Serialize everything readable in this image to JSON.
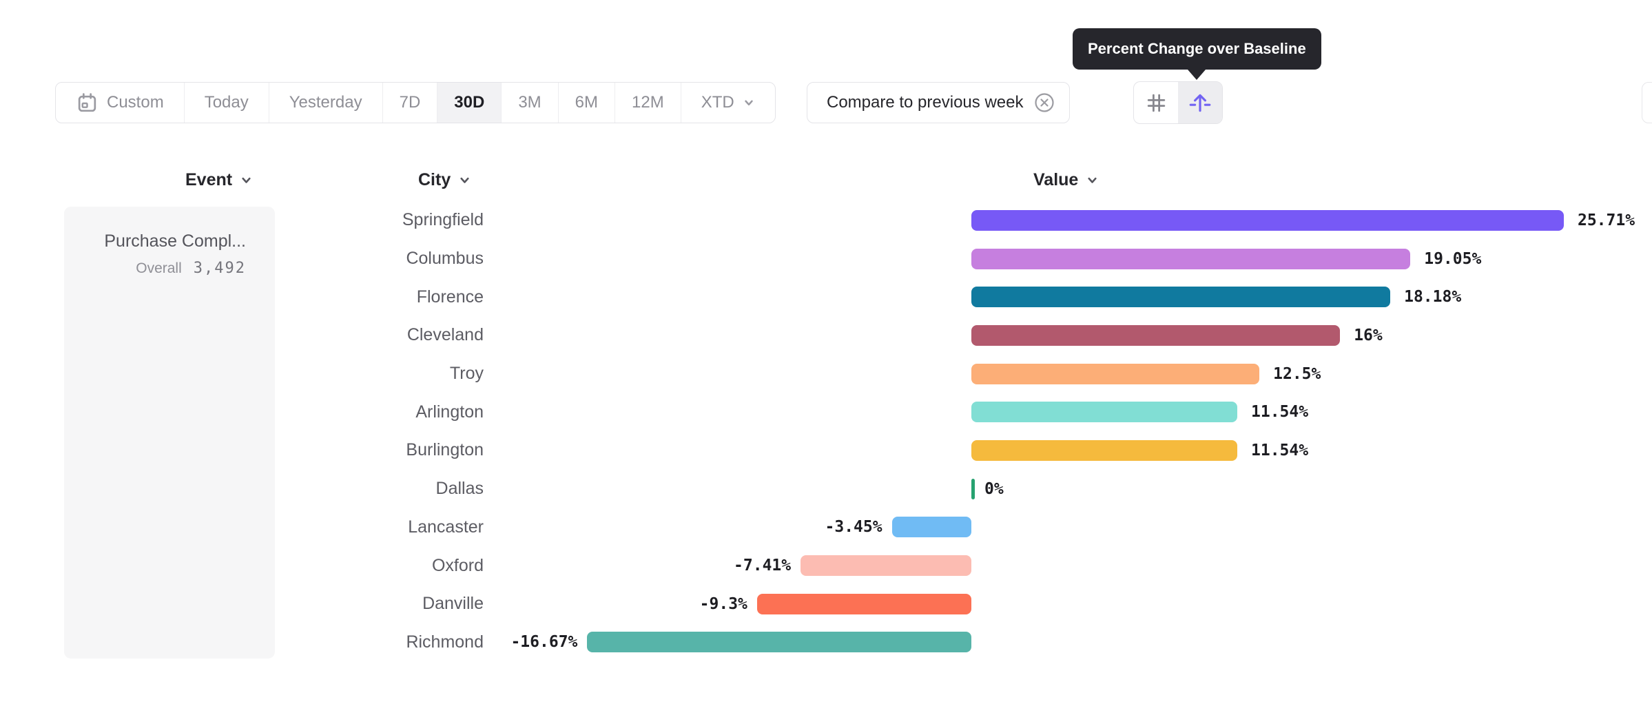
{
  "toolbar": {
    "date_ranges": [
      {
        "label": "Custom",
        "selected": false,
        "has_calendar_icon": true
      },
      {
        "label": "Today",
        "selected": false
      },
      {
        "label": "Yesterday",
        "selected": false
      },
      {
        "label": "7D",
        "selected": false
      },
      {
        "label": "30D",
        "selected": true
      },
      {
        "label": "3M",
        "selected": false
      },
      {
        "label": "6M",
        "selected": false
      },
      {
        "label": "12M",
        "selected": false
      },
      {
        "label": "XTD",
        "selected": false,
        "has_chevron": true
      }
    ],
    "compare_label": "Compare to previous week",
    "view_toggles": [
      {
        "name": "grid-view",
        "selected": false
      },
      {
        "name": "percent-change-over-baseline",
        "selected": true
      }
    ]
  },
  "tooltip": {
    "text": "Percent Change over Baseline",
    "background": "#26262c",
    "text_color": "#ffffff"
  },
  "columns": {
    "event_label": "Event",
    "city_label": "City",
    "value_label": "Value"
  },
  "event_card": {
    "title": "Purchase Compl...",
    "metric_label": "Overall",
    "metric_value": "3,492"
  },
  "chart_data": {
    "type": "bar",
    "orientation": "horizontal",
    "value_unit": "percent",
    "baseline": 0,
    "xlim": [
      -16.67,
      25.71
    ],
    "categories": [
      "Springfield",
      "Columbus",
      "Florence",
      "Cleveland",
      "Troy",
      "Arlington",
      "Burlington",
      "Dallas",
      "Lancaster",
      "Oxford",
      "Danville",
      "Richmond"
    ],
    "values": [
      25.71,
      19.05,
      18.18,
      16,
      12.5,
      11.54,
      11.54,
      0,
      -3.45,
      -7.41,
      -9.3,
      -16.67
    ],
    "value_labels": [
      "25.71%",
      "19.05%",
      "18.18%",
      "16%",
      "12.5%",
      "11.54%",
      "11.54%",
      "0%",
      "-3.45%",
      "-7.41%",
      "-9.3%",
      "-16.67%"
    ],
    "bar_colors": [
      "#7759f6",
      "#c67fdf",
      "#107a9f",
      "#b2596d",
      "#fcae77",
      "#81ded4",
      "#f5ba3d",
      "#27a270",
      "#70bbf4",
      "#fcbcb2",
      "#fc7154",
      "#57b4a9"
    ]
  },
  "theme": {
    "accent": "#7263f2",
    "selected_bg": "#f2f2f4",
    "border": "#e4e4e8",
    "muted_text": "#8e8e95",
    "dark_text": "#26262b",
    "city_text": "#5c5c63",
    "value_text": "#1d1d22",
    "card_bg": "#f6f6f7",
    "zero_tick": "#27a270"
  }
}
